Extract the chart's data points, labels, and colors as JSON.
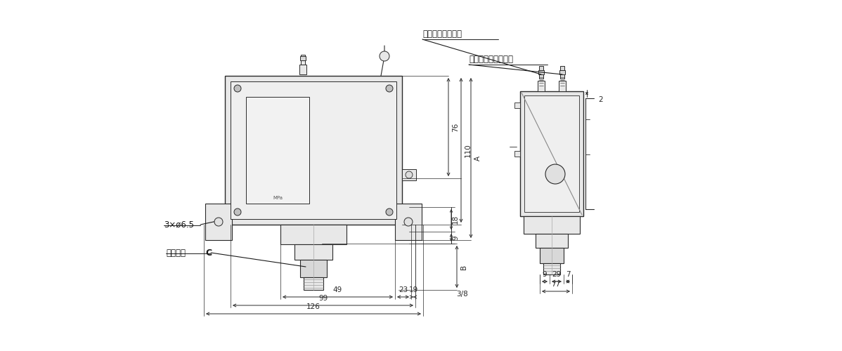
{
  "bg_color": "#ffffff",
  "line_color": "#2a2a2a",
  "fill_color": "#d8d8d8",
  "fill_light": "#e8e8e8",
  "fill_inner": "#efefef",
  "label1": "応差調整用ボルト",
  "label2": "設定圧力調整ボルト",
  "label3": "3×ø6.5",
  "label4a": "六觓対辺",
  "label4b": "C",
  "mpa": "MPa",
  "dims_front_bottom": {
    "49": 1,
    "23": 1,
    "19": 1,
    "99": 1,
    "126": 1
  },
  "dims_right": {
    "76": 1,
    "110": 1,
    "A": 1,
    "18": 1,
    "9": 1,
    "B": 1
  },
  "dims_side": {
    "9s": 1,
    "29": 1,
    "7": 1,
    "77": 1,
    "2": 1,
    "38s": "3/8"
  }
}
